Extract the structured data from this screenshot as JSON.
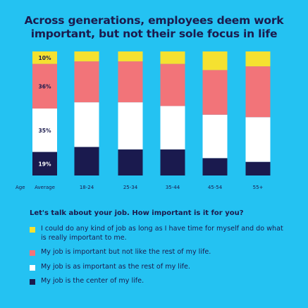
{
  "chart_data": {
    "type": "bar",
    "stacked": true,
    "orientation": "vertical",
    "title_lines": [
      "Across generations, employees deem work",
      "important, but not their sole focus in life"
    ],
    "x_prefix_label": "Age",
    "categories": [
      "Average",
      "18-24",
      "25-34",
      "35-44",
      "45-54",
      "55+"
    ],
    "series": [
      {
        "name": "My job is the center of my life.",
        "color": "#1a1a4e",
        "values": [
          19,
          23,
          21,
          21,
          14,
          11
        ]
      },
      {
        "name": "My job is as important as the rest of my life.",
        "color": "#ffffff",
        "values": [
          35,
          36,
          38,
          35,
          35,
          36
        ]
      },
      {
        "name": "My job is important but not like the rest of my life.",
        "color": "#f27479",
        "values": [
          36,
          33,
          33,
          34,
          36,
          41
        ]
      },
      {
        "name": "I could do any kind of job as long as I have time for myself and do what is really important to me.",
        "color": "#f5e130",
        "values": [
          10,
          8,
          8,
          10,
          15,
          12
        ]
      }
    ],
    "data_labels": {
      "category_index": 0,
      "texts": [
        "19%",
        "35%",
        "36%",
        "10%"
      ]
    },
    "ylim": [
      0,
      100
    ],
    "grid": false,
    "legend_position": "bottom"
  },
  "question": "Let's talk about your job. How important is it for you?",
  "legend_order": [
    3,
    2,
    1,
    0
  ]
}
